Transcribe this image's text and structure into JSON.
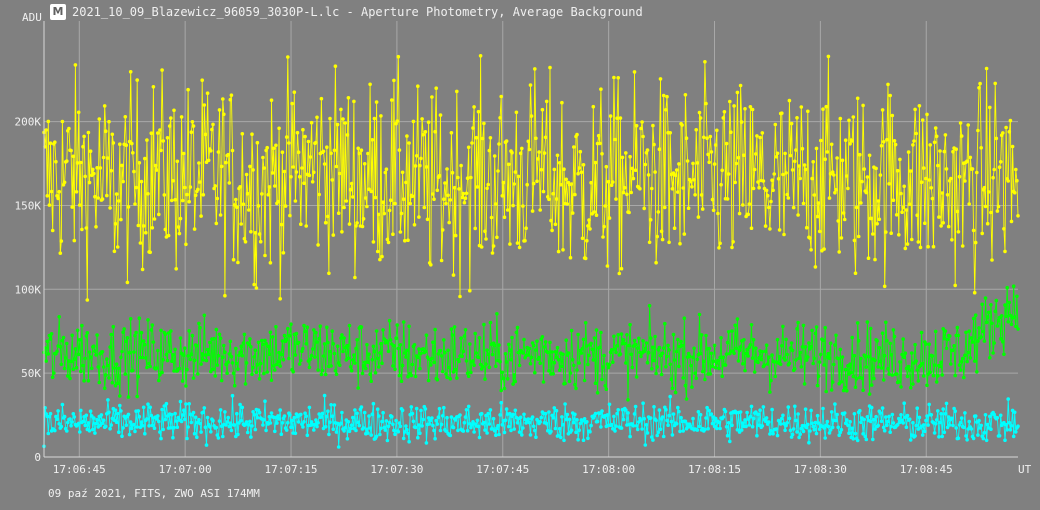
{
  "header": {
    "icon": "lightcurve-icon",
    "title": "2021_10_09_Blazewicz_96059_3030P-L.lc - Aperture Photometry, Average Background"
  },
  "footer": {
    "text": "09 paź 2021, FITS, ZWO ASI 174MM"
  },
  "chart_data": {
    "type": "scatter",
    "title": "",
    "ylabel": "ADU",
    "xlabel": "UT",
    "ylim": [
      0,
      260000
    ],
    "xlim": [
      "17:06:40",
      "17:08:58"
    ],
    "y_ticks": [
      {
        "value": 0,
        "label": "0"
      },
      {
        "value": 50000,
        "label": "50K"
      },
      {
        "value": 100000,
        "label": "100K"
      },
      {
        "value": 150000,
        "label": "150K"
      },
      {
        "value": 200000,
        "label": "200K"
      }
    ],
    "x_ticks": [
      {
        "value": "17:06:45",
        "label": "17:06:45"
      },
      {
        "value": "17:07:00",
        "label": "17:07:00"
      },
      {
        "value": "17:07:15",
        "label": "17:07:15"
      },
      {
        "value": "17:07:30",
        "label": "17:07:30"
      },
      {
        "value": "17:07:45",
        "label": "17:07:45"
      },
      {
        "value": "17:08:00",
        "label": "17:08:00"
      },
      {
        "value": "17:08:15",
        "label": "17:08:15"
      },
      {
        "value": "17:08:30",
        "label": "17:08:30"
      },
      {
        "value": "17:08:45",
        "label": "17:08:45"
      }
    ],
    "grid": true,
    "connected_points": true,
    "series": [
      {
        "color": "#ffff00",
        "x": [
          "17:06:40",
          "17:06:45",
          "17:06:50",
          "17:06:55",
          "17:07:00",
          "17:07:05",
          "17:07:10",
          "17:07:15",
          "17:07:20",
          "17:07:25",
          "17:07:30",
          "17:07:35",
          "17:07:40",
          "17:07:45",
          "17:07:50",
          "17:07:55",
          "17:08:00",
          "17:08:05",
          "17:08:10",
          "17:08:15",
          "17:08:20",
          "17:08:25",
          "17:08:30",
          "17:08:35",
          "17:08:40",
          "17:08:45",
          "17:08:50",
          "17:08:55",
          "17:08:58"
        ],
        "y": [
          165000,
          170000,
          160000,
          172000,
          165000,
          168000,
          162000,
          170000,
          175000,
          166000,
          170000,
          160000,
          168000,
          165000,
          172000,
          160000,
          165000,
          170000,
          162000,
          168000,
          165000,
          160000,
          170000,
          163000,
          168000,
          165000,
          160000,
          170000,
          165000
        ],
        "spread": 28000
      },
      {
        "color": "#00ff00",
        "x": [
          "17:06:40",
          "17:06:45",
          "17:06:50",
          "17:06:55",
          "17:07:00",
          "17:07:05",
          "17:07:10",
          "17:07:15",
          "17:07:20",
          "17:07:25",
          "17:07:30",
          "17:07:35",
          "17:07:40",
          "17:07:45",
          "17:07:50",
          "17:07:55",
          "17:08:00",
          "17:08:05",
          "17:08:10",
          "17:08:15",
          "17:08:20",
          "17:08:25",
          "17:08:30",
          "17:08:35",
          "17:08:40",
          "17:08:45",
          "17:08:50",
          "17:08:52",
          "17:08:55",
          "17:08:58"
        ],
        "y": [
          60000,
          63000,
          60000,
          62000,
          61000,
          63000,
          62000,
          64000,
          63000,
          61000,
          62000,
          60000,
          61000,
          59000,
          62000,
          61000,
          60000,
          61000,
          60000,
          61000,
          62000,
          60000,
          61000,
          60000,
          59000,
          60000,
          63000,
          70000,
          82000,
          92000
        ],
        "spread": 10000
      },
      {
        "color": "#00ffff",
        "x": [
          "17:06:40",
          "17:07:00",
          "17:07:20",
          "17:07:40",
          "17:08:00",
          "17:08:20",
          "17:08:40",
          "17:08:58"
        ],
        "y": [
          20000,
          21000,
          21000,
          20000,
          21000,
          21000,
          20000,
          20000
        ],
        "spread": 5500
      }
    ]
  }
}
